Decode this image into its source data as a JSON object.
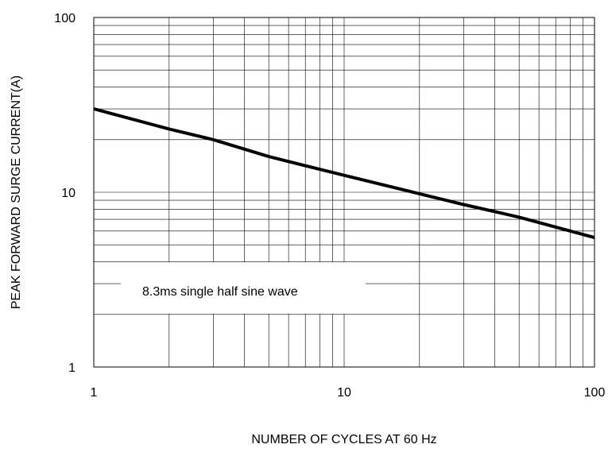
{
  "chart_data": {
    "type": "line",
    "title": "",
    "xlabel": "NUMBER OF CYCLES AT 60 Hz",
    "ylabel": "PEAK FORWARD SURGE CURRENT(A)",
    "x_scale": "log",
    "y_scale": "log",
    "xlim": [
      1,
      100
    ],
    "ylim": [
      1,
      100
    ],
    "x_ticks": [
      "1",
      "10",
      "100"
    ],
    "y_ticks": [
      "1",
      "10",
      "100"
    ],
    "grid": true,
    "annotation": "8.3ms single half sine wave",
    "series": [
      {
        "name": "",
        "x": [
          1,
          2,
          3,
          5,
          10,
          20,
          30,
          50,
          100
        ],
        "y": [
          30,
          23,
          20,
          16,
          12.5,
          9.8,
          8.5,
          7.2,
          5.5
        ]
      }
    ]
  }
}
